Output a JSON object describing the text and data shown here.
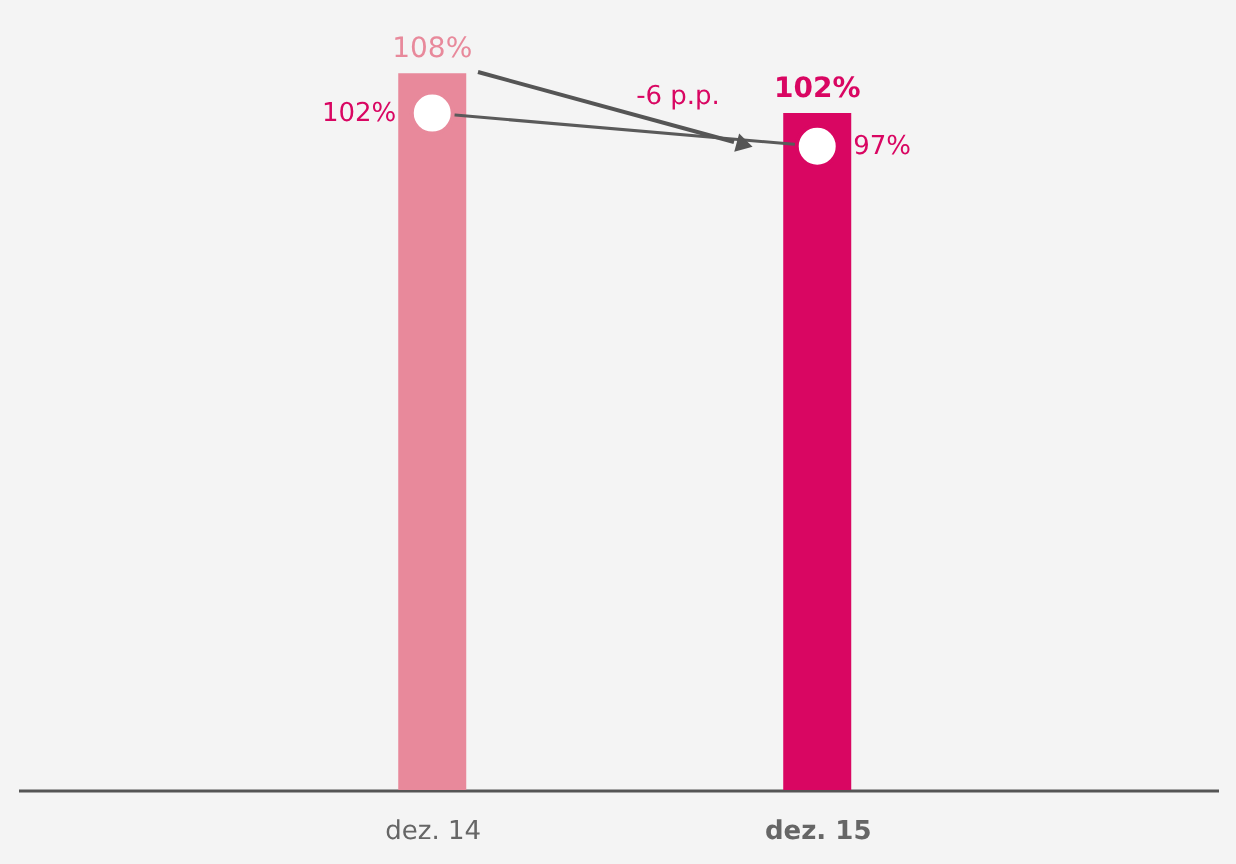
{
  "chart_data": {
    "type": "bar",
    "categories": [
      "dez. 14",
      "dez. 15"
    ],
    "series": [
      {
        "colors": [
          "#e8899b",
          "#d90662"
        ],
        "values": [
          108,
          102
        ],
        "value_labels": [
          "108%",
          "102%"
        ]
      },
      {
        "type": "line",
        "color": "#5a5a5a",
        "marker": "circle",
        "values": [
          102,
          97
        ],
        "value_labels": [
          "102%",
          "97%"
        ]
      }
    ],
    "tick_labels": "x",
    "grid": false,
    "annotations": [
      "-6 p.p."
    ]
  }
}
